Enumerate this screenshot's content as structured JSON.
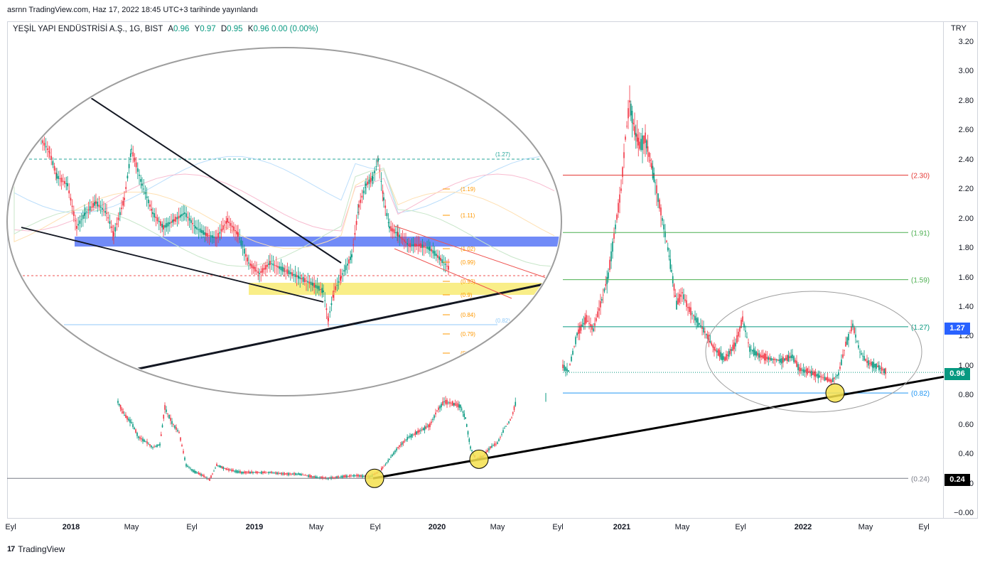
{
  "header": {
    "published": "asrnn TradingView.com, Haz 17, 2022 18:45 UTC+3 tarihinde yayınlandı"
  },
  "legend": {
    "symbol": "YEŞİL YAPI ENDÜSTRİSİ A.Ş., 1G, BIST",
    "a_label": "A",
    "a_value": "0.96",
    "y_label": "Y",
    "y_value": "0.97",
    "d_label": "D",
    "d_value": "0.95",
    "k_label": "K",
    "k_value": "0.96",
    "change": "0.00 (0.00%)"
  },
  "axis": {
    "currency": "TRY",
    "y_ticks": [
      "3.20",
      "3.00",
      "2.80",
      "2.60",
      "2.40",
      "2.20",
      "2.00",
      "1.80",
      "1.60",
      "1.40",
      "1.20",
      "1.00",
      "0.80",
      "0.60",
      "0.40",
      "0.20",
      "−0.00"
    ],
    "x_ticks": [
      {
        "label": "Eyl",
        "bold": false
      },
      {
        "label": "2018",
        "bold": true
      },
      {
        "label": "May",
        "bold": false
      },
      {
        "label": "Eyl",
        "bold": false
      },
      {
        "label": "2019",
        "bold": true
      },
      {
        "label": "May",
        "bold": false
      },
      {
        "label": "Eyl",
        "bold": false
      },
      {
        "label": "2020",
        "bold": true
      },
      {
        "label": "May",
        "bold": false
      },
      {
        "label": "Eyl",
        "bold": false
      },
      {
        "label": "2021",
        "bold": true
      },
      {
        "label": "May",
        "bold": false
      },
      {
        "label": "Eyl",
        "bold": false
      },
      {
        "label": "2022",
        "bold": true
      },
      {
        "label": "May",
        "bold": false
      },
      {
        "label": "Eyl",
        "bold": false
      }
    ]
  },
  "badges": {
    "b127": {
      "text": "1.27",
      "color": "#2962ff"
    },
    "b096": {
      "text": "0.96",
      "color": "#089981"
    },
    "b024": {
      "text": "0.24",
      "color": "#000000"
    }
  },
  "fib_levels": [
    {
      "label": "(2.30)",
      "value": 2.3,
      "color": "#e53935"
    },
    {
      "label": "(1.91)",
      "value": 1.91,
      "color": "#4caf50"
    },
    {
      "label": "(1.59)",
      "value": 1.59,
      "color": "#4caf50"
    },
    {
      "label": "(1.27)",
      "value": 1.27,
      "color": "#089981"
    },
    {
      "label": "(0.82)",
      "value": 0.82,
      "color": "#2196f3"
    },
    {
      "label": "(0.24)",
      "value": 0.24,
      "color": "#787b86"
    }
  ],
  "inset_labels": [
    "(1.27)",
    "(1.19)",
    "(1.11)",
    "(1.02)",
    "(0.99)",
    "(0.93)",
    "(0.9)",
    "(0.84)",
    "(0.79)",
    "(0)",
    "(0.82)"
  ],
  "footer": {
    "brand": "TradingView",
    "logo": "17"
  },
  "chart_data": {
    "type": "line",
    "title": "YEŞİL YAPI ENDÜSTRİSİ A.Ş., 1G, BIST",
    "xlabel": "",
    "ylabel": "TRY",
    "ylim": [
      0,
      3.2
    ],
    "grid": false,
    "x": [
      "2018-01",
      "2018-03",
      "2018-05",
      "2018-07",
      "2018-09",
      "2018-11",
      "2019-01",
      "2019-03",
      "2019-05",
      "2019-07",
      "2019-09",
      "2019-11",
      "2020-01",
      "2020-03",
      "2020-05",
      "2020-07",
      "2020-09",
      "2020-11",
      "2021-01",
      "2021-02",
      "2021-03",
      "2021-05",
      "2021-07",
      "2021-09",
      "2021-11",
      "2022-01",
      "2022-03",
      "2022-04",
      "2022-05",
      "2022-06"
    ],
    "series": [
      {
        "values": [
          0.78,
          0.65,
          0.46,
          0.74,
          0.5,
          0.28,
          0.3,
          0.28,
          0.27,
          0.26,
          0.26,
          0.4,
          0.6,
          0.78,
          0.38,
          0.8,
          0.98,
          1.2,
          1.7,
          2.9,
          2.3,
          1.4,
          1.22,
          1.05,
          1.05,
          0.92,
          0.88,
          1.3,
          1.02,
          0.96
        ]
      }
    ]
  }
}
